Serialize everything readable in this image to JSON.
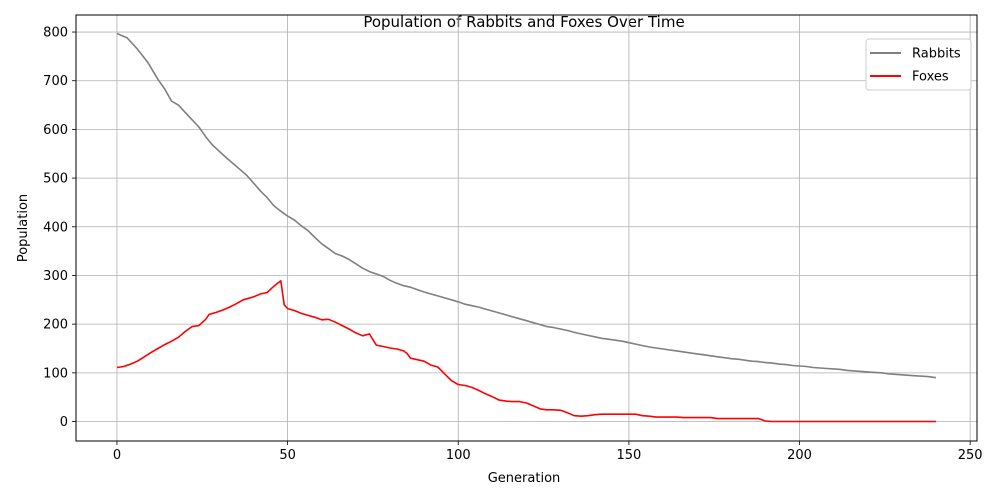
{
  "chart_data": {
    "type": "line",
    "title": "Population of Rabbits and Foxes Over Time",
    "xlabel": "Generation",
    "ylabel": "Population",
    "xlim": [
      -12,
      252
    ],
    "ylim": [
      -40,
      835
    ],
    "xticks": [
      0,
      50,
      100,
      150,
      200,
      250
    ],
    "yticks": [
      0,
      100,
      200,
      300,
      400,
      500,
      600,
      700,
      800
    ],
    "grid": true,
    "legend_position": "top-right",
    "series": [
      {
        "name": "Rabbits",
        "color": "#808080",
        "points": [
          [
            0,
            797
          ],
          [
            3,
            788
          ],
          [
            6,
            765
          ],
          [
            9,
            738
          ],
          [
            12,
            703
          ],
          [
            14,
            683
          ],
          [
            16,
            658
          ],
          [
            18,
            650
          ],
          [
            20,
            635
          ],
          [
            22,
            620
          ],
          [
            24,
            605
          ],
          [
            26,
            585
          ],
          [
            28,
            568
          ],
          [
            30,
            555
          ],
          [
            32,
            542
          ],
          [
            34,
            530
          ],
          [
            36,
            518
          ],
          [
            38,
            506
          ],
          [
            40,
            490
          ],
          [
            42,
            474
          ],
          [
            44,
            460
          ],
          [
            46,
            443
          ],
          [
            48,
            432
          ],
          [
            50,
            422
          ],
          [
            52,
            414
          ],
          [
            54,
            402
          ],
          [
            56,
            392
          ],
          [
            58,
            378
          ],
          [
            60,
            365
          ],
          [
            62,
            355
          ],
          [
            64,
            345
          ],
          [
            66,
            340
          ],
          [
            68,
            333
          ],
          [
            70,
            324
          ],
          [
            72,
            315
          ],
          [
            74,
            308
          ],
          [
            76,
            303
          ],
          [
            78,
            298
          ],
          [
            80,
            290
          ],
          [
            82,
            284
          ],
          [
            84,
            279
          ],
          [
            86,
            276
          ],
          [
            88,
            271
          ],
          [
            90,
            266
          ],
          [
            92,
            262
          ],
          [
            94,
            258
          ],
          [
            96,
            254
          ],
          [
            98,
            250
          ],
          [
            100,
            246
          ],
          [
            102,
            241
          ],
          [
            104,
            238
          ],
          [
            106,
            235
          ],
          [
            108,
            231
          ],
          [
            110,
            227
          ],
          [
            112,
            223
          ],
          [
            114,
            219
          ],
          [
            116,
            215
          ],
          [
            118,
            211
          ],
          [
            120,
            207
          ],
          [
            122,
            203
          ],
          [
            124,
            199
          ],
          [
            126,
            195
          ],
          [
            128,
            193
          ],
          [
            130,
            190
          ],
          [
            132,
            187
          ],
          [
            134,
            183
          ],
          [
            136,
            180
          ],
          [
            138,
            177
          ],
          [
            140,
            174
          ],
          [
            142,
            171
          ],
          [
            144,
            169
          ],
          [
            146,
            167
          ],
          [
            148,
            165
          ],
          [
            150,
            162
          ],
          [
            152,
            159
          ],
          [
            154,
            156
          ],
          [
            156,
            153
          ],
          [
            158,
            151
          ],
          [
            160,
            149
          ],
          [
            162,
            147
          ],
          [
            164,
            145
          ],
          [
            166,
            143
          ],
          [
            168,
            141
          ],
          [
            170,
            139
          ],
          [
            172,
            137
          ],
          [
            174,
            135
          ],
          [
            176,
            133
          ],
          [
            178,
            131
          ],
          [
            180,
            129
          ],
          [
            182,
            128
          ],
          [
            184,
            126
          ],
          [
            186,
            124
          ],
          [
            188,
            123
          ],
          [
            190,
            121
          ],
          [
            192,
            120
          ],
          [
            194,
            118
          ],
          [
            196,
            117
          ],
          [
            198,
            115
          ],
          [
            200,
            114
          ],
          [
            202,
            113
          ],
          [
            204,
            111
          ],
          [
            206,
            110
          ],
          [
            208,
            109
          ],
          [
            210,
            108
          ],
          [
            212,
            107
          ],
          [
            214,
            105
          ],
          [
            216,
            104
          ],
          [
            218,
            103
          ],
          [
            220,
            102
          ],
          [
            222,
            101
          ],
          [
            224,
            100
          ],
          [
            226,
            98
          ],
          [
            228,
            97
          ],
          [
            230,
            96
          ],
          [
            232,
            95
          ],
          [
            234,
            94
          ],
          [
            236,
            93
          ],
          [
            238,
            92
          ],
          [
            240,
            90
          ]
        ]
      },
      {
        "name": "Foxes",
        "color": "#ff0000",
        "points": [
          [
            0,
            111
          ],
          [
            2,
            113
          ],
          [
            4,
            118
          ],
          [
            6,
            124
          ],
          [
            8,
            133
          ],
          [
            10,
            142
          ],
          [
            12,
            150
          ],
          [
            14,
            158
          ],
          [
            16,
            165
          ],
          [
            18,
            173
          ],
          [
            20,
            185
          ],
          [
            22,
            195
          ],
          [
            24,
            197
          ],
          [
            26,
            210
          ],
          [
            27,
            220
          ],
          [
            29,
            224
          ],
          [
            31,
            229
          ],
          [
            33,
            235
          ],
          [
            35,
            242
          ],
          [
            37,
            250
          ],
          [
            40,
            256
          ],
          [
            42,
            262
          ],
          [
            44,
            265
          ],
          [
            46,
            278
          ],
          [
            48,
            289
          ],
          [
            49,
            240
          ],
          [
            50,
            232
          ],
          [
            52,
            228
          ],
          [
            54,
            222
          ],
          [
            56,
            218
          ],
          [
            58,
            214
          ],
          [
            60,
            209
          ],
          [
            62,
            210
          ],
          [
            64,
            204
          ],
          [
            66,
            197
          ],
          [
            68,
            190
          ],
          [
            70,
            182
          ],
          [
            72,
            176
          ],
          [
            74,
            180
          ],
          [
            75,
            168
          ],
          [
            76,
            157
          ],
          [
            78,
            154
          ],
          [
            80,
            151
          ],
          [
            82,
            149
          ],
          [
            84,
            145
          ],
          [
            85,
            140
          ],
          [
            86,
            130
          ],
          [
            88,
            127
          ],
          [
            90,
            124
          ],
          [
            92,
            116
          ],
          [
            94,
            112
          ],
          [
            96,
            98
          ],
          [
            98,
            84
          ],
          [
            100,
            76
          ],
          [
            102,
            74
          ],
          [
            104,
            70
          ],
          [
            106,
            64
          ],
          [
            108,
            57
          ],
          [
            110,
            51
          ],
          [
            112,
            44
          ],
          [
            114,
            42
          ],
          [
            116,
            41
          ],
          [
            118,
            41
          ],
          [
            120,
            38
          ],
          [
            122,
            32
          ],
          [
            124,
            26
          ],
          [
            126,
            24
          ],
          [
            128,
            24
          ],
          [
            130,
            23
          ],
          [
            132,
            18
          ],
          [
            134,
            12
          ],
          [
            136,
            11
          ],
          [
            138,
            12
          ],
          [
            140,
            14
          ],
          [
            142,
            15
          ],
          [
            144,
            15
          ],
          [
            146,
            15
          ],
          [
            148,
            15
          ],
          [
            150,
            15
          ],
          [
            152,
            15
          ],
          [
            154,
            12
          ],
          [
            156,
            11
          ],
          [
            158,
            9
          ],
          [
            160,
            9
          ],
          [
            162,
            9
          ],
          [
            164,
            9
          ],
          [
            166,
            8
          ],
          [
            168,
            8
          ],
          [
            170,
            8
          ],
          [
            172,
            8
          ],
          [
            174,
            8
          ],
          [
            176,
            6
          ],
          [
            178,
            6
          ],
          [
            180,
            6
          ],
          [
            182,
            6
          ],
          [
            184,
            6
          ],
          [
            186,
            6
          ],
          [
            188,
            6
          ],
          [
            190,
            1
          ],
          [
            192,
            0
          ],
          [
            200,
            0
          ],
          [
            210,
            0
          ],
          [
            220,
            0
          ],
          [
            230,
            0
          ],
          [
            240,
            0
          ]
        ]
      }
    ]
  }
}
